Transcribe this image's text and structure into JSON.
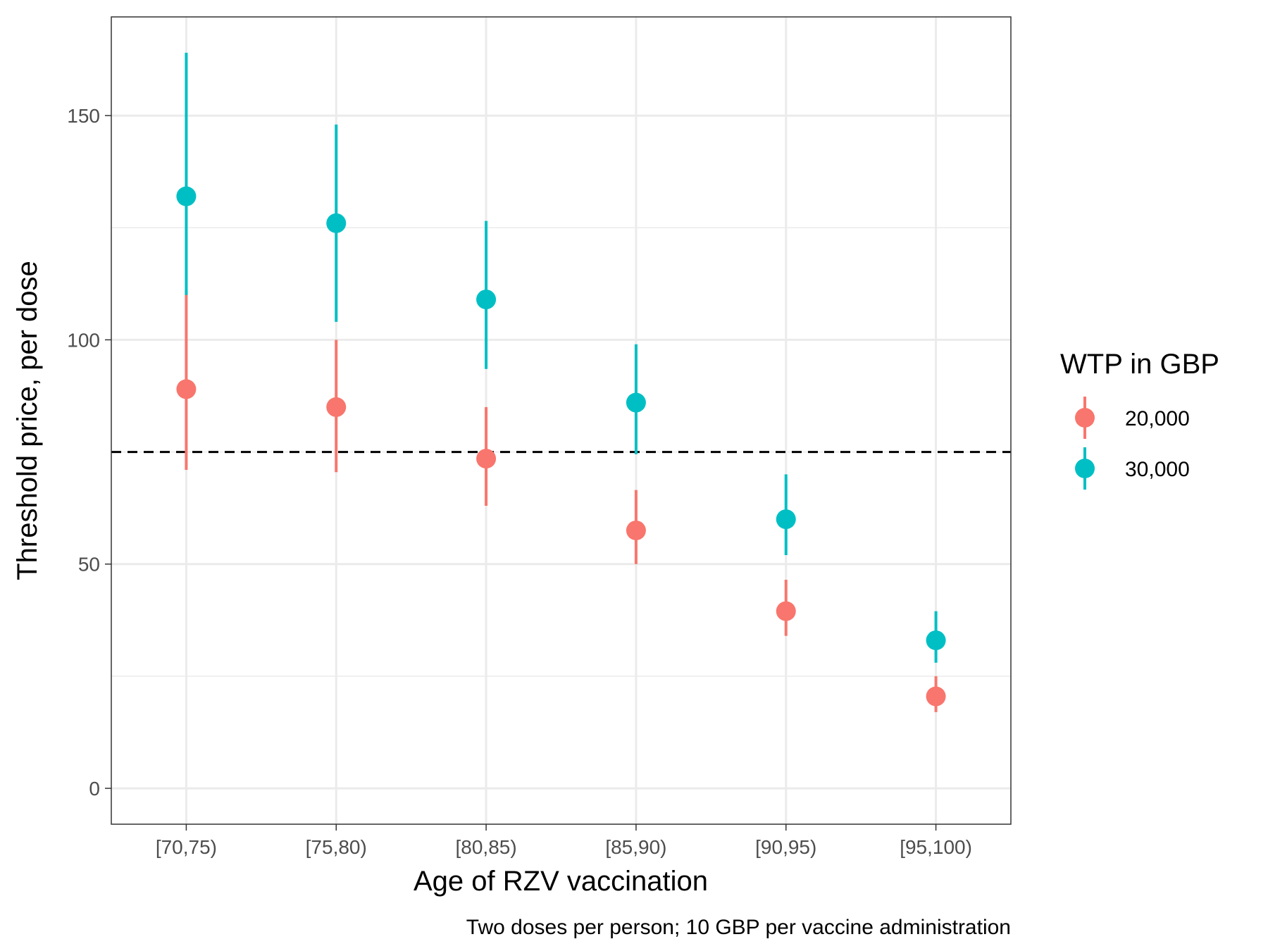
{
  "chart_data": {
    "type": "scatter",
    "xlabel": "Age of RZV vaccination",
    "ylabel": "Threshold price, per dose",
    "caption": "Two doses per person; 10 GBP per vaccine administration",
    "categories": [
      "[70,75)",
      "[75,80)",
      "[80,85)",
      "[85,90)",
      "[90,95)",
      "[95,100)"
    ],
    "ylim": [
      -8,
      172
    ],
    "yticks": [
      0,
      50,
      100,
      150
    ],
    "y_minor_ticks": [
      25,
      75,
      125
    ],
    "reference_line": {
      "y": 75,
      "style": "dashed",
      "color": "#000000"
    },
    "legend": {
      "title": "WTP in GBP",
      "position": "right"
    },
    "grid": true,
    "series": [
      {
        "name": "20,000",
        "color": "#F8766D",
        "values": [
          89,
          85,
          73.5,
          57.5,
          39.5,
          20.5
        ],
        "lower": [
          71,
          70.5,
          63,
          50,
          34,
          17
        ],
        "upper": [
          111,
          100,
          85,
          66.5,
          46.5,
          25
        ]
      },
      {
        "name": "30,000",
        "color": "#00BFC4",
        "values": [
          132,
          126,
          109,
          86,
          60,
          33
        ],
        "lower": [
          110,
          104,
          93.5,
          74.5,
          52,
          28
        ],
        "upper": [
          164,
          148,
          126.5,
          99,
          70,
          39.5
        ]
      }
    ]
  }
}
